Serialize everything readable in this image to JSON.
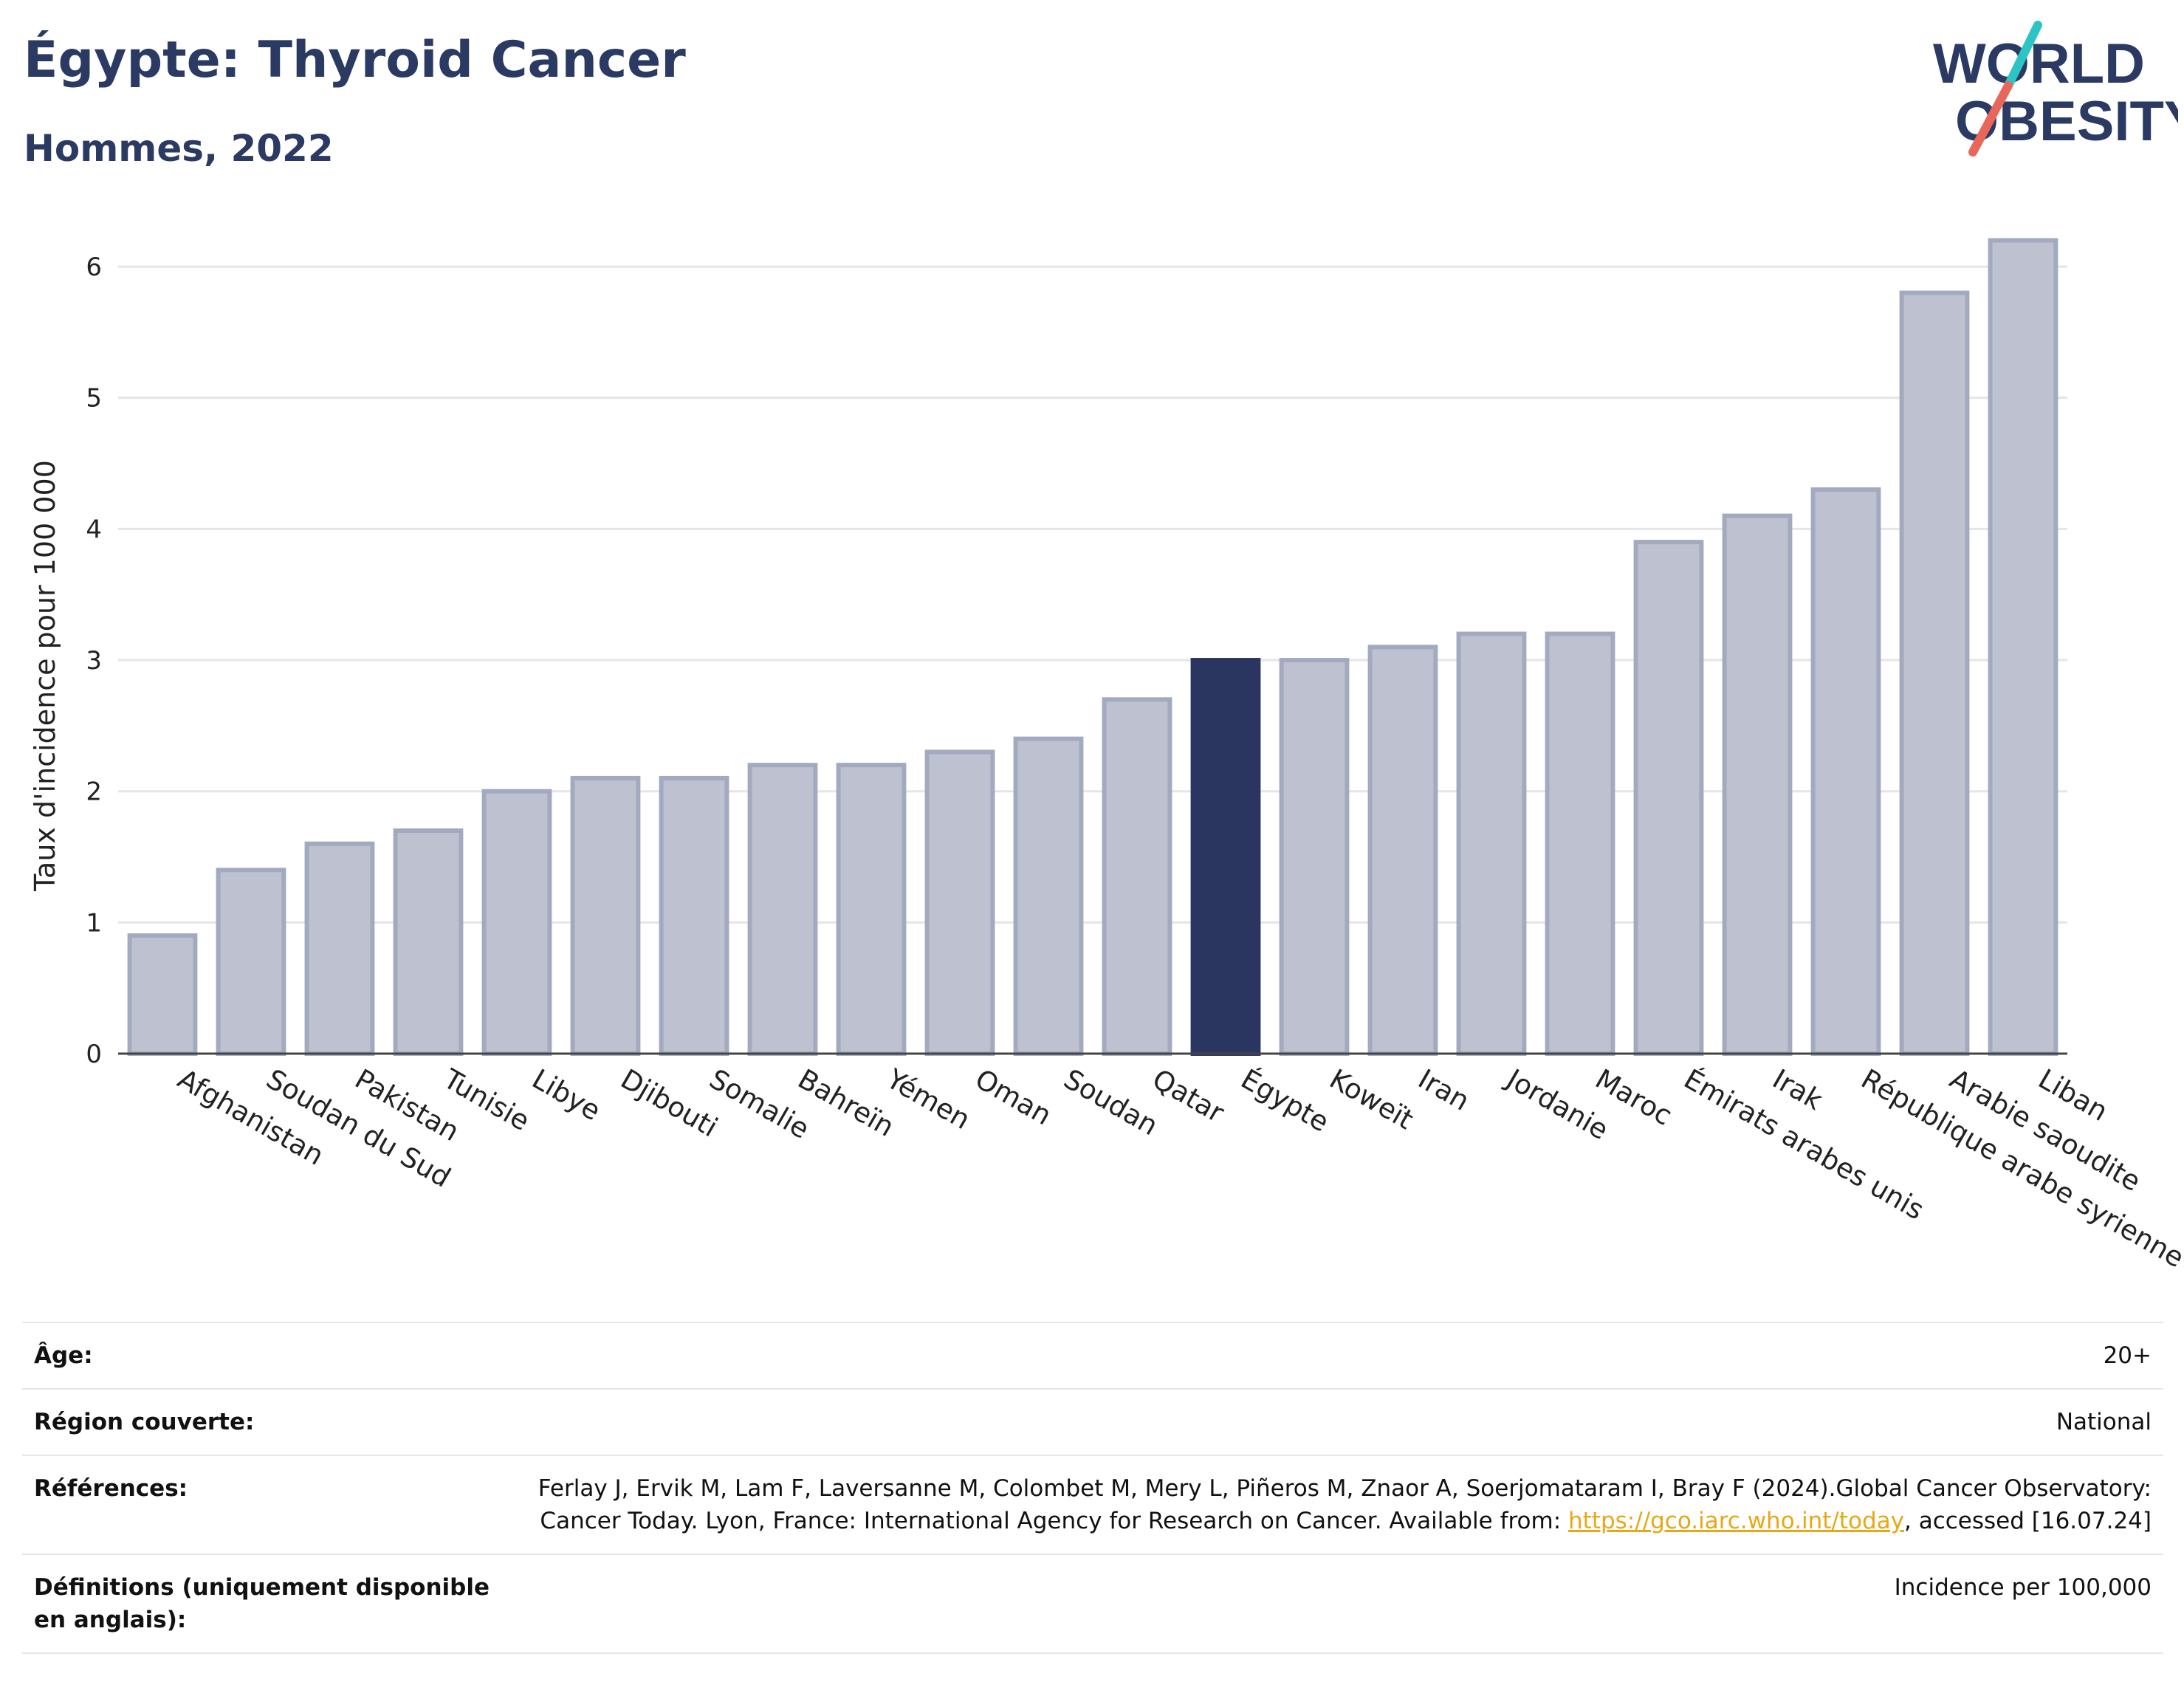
{
  "title": "Égypte: Thyroid Cancer",
  "subtitle": "Hommes, 2022",
  "logo": {
    "line1": "WORLD",
    "line2": "OBESITY",
    "accent_colors": [
      "#2ec4c6",
      "#e8675a"
    ]
  },
  "chart_data": {
    "type": "bar",
    "title": "Égypte: Thyroid Cancer",
    "subtitle": "Hommes, 2022",
    "xlabel": "",
    "ylabel": "Taux d'incidence pour 100 000",
    "ylim": [
      0,
      6.4
    ],
    "yticks": [
      0,
      1,
      2,
      3,
      4,
      5,
      6
    ],
    "grid": true,
    "highlight": "Égypte",
    "colors": {
      "default": "#bec2d0",
      "default_border": "#a3aac0",
      "highlight": "#2b3660",
      "grid": "#e5e5e5",
      "axis": "#444444"
    },
    "categories": [
      "Afghanistan",
      "Soudan du Sud",
      "Pakistan",
      "Tunisie",
      "Libye",
      "Djibouti",
      "Somalie",
      "Bahreïn",
      "Yémen",
      "Oman",
      "Soudan",
      "Qatar",
      "Égypte",
      "Koweït",
      "Iran",
      "Jordanie",
      "Maroc",
      "Émirats arabes unis",
      "Irak",
      "République arabe syrienne",
      "Arabie saoudite",
      "Liban"
    ],
    "values": [
      0.9,
      1.4,
      1.6,
      1.7,
      2.0,
      2.1,
      2.1,
      2.2,
      2.2,
      2.3,
      2.4,
      2.7,
      3.0,
      3.0,
      3.1,
      3.2,
      3.2,
      3.9,
      4.1,
      4.3,
      5.8,
      6.2
    ]
  },
  "meta": [
    {
      "label": "Âge:",
      "value": "20+"
    },
    {
      "label": "Région couverte:",
      "value": "National"
    },
    {
      "label": "Références:",
      "value_pre": "Ferlay J, Ervik M, Lam F, Laversanne M, Colombet M, Mery L, Piñeros M, Znaor A, Soerjomataram I, Bray F (2024).Global Cancer Observatory: Cancer Today. Lyon, France: International Agency for Research on Cancer. Available from: ",
      "link": "https://gco.iarc.who.int/today",
      "value_post": ", accessed [16.07.24]"
    },
    {
      "label": "Définitions (uniquement disponible en anglais):",
      "value": "Incidence per 100,000"
    }
  ]
}
